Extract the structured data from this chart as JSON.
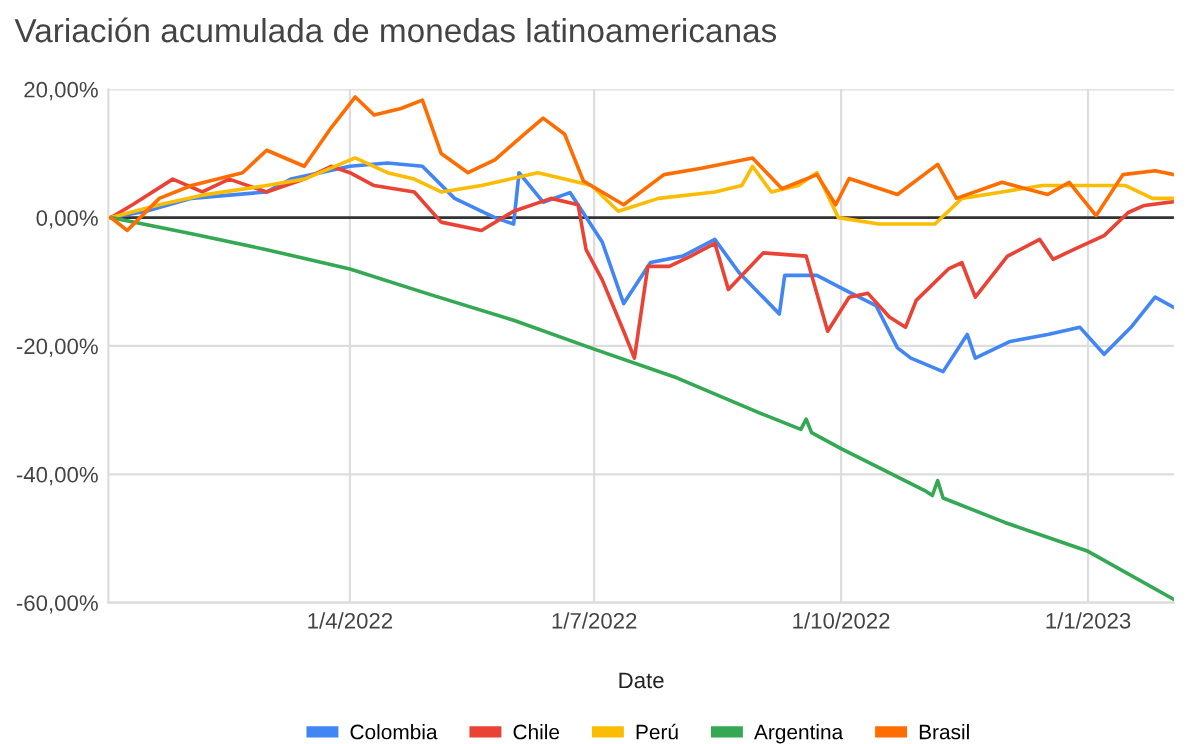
{
  "chart_data": {
    "type": "line",
    "title": "Variación acumulada de monedas latinoamericanas",
    "xlabel": "Date",
    "xlim": [
      "2022-01-01",
      "2023-02-02"
    ],
    "xticks": [
      {
        "value": "2022-04-01",
        "label": "1/4/2022"
      },
      {
        "value": "2022-07-01",
        "label": "1/7/2022"
      },
      {
        "value": "2022-10-01",
        "label": "1/10/2022"
      },
      {
        "value": "2023-01-01",
        "label": "1/1/2023"
      }
    ],
    "ylim": [
      -60,
      20
    ],
    "yticks": [
      {
        "value": -60,
        "label": "-60,00%"
      },
      {
        "value": -40,
        "label": "-40,00%"
      },
      {
        "value": -20,
        "label": "-20,00%"
      },
      {
        "value": 0,
        "label": "0,00%"
      },
      {
        "value": 20,
        "label": "20,00%"
      }
    ],
    "grid": true,
    "legend": "bottom",
    "marker": "none",
    "line_style": "solid",
    "ref_lines": [
      {
        "axis": "y",
        "value": 0,
        "color": "#333333"
      }
    ],
    "series": [
      {
        "name": "Colombia",
        "color": "#4285f4",
        "x": [
          "2022-01-02",
          "2022-01-15",
          "2022-02-01",
          "2022-03-01",
          "2022-03-10",
          "2022-04-01",
          "2022-04-15",
          "2022-04-28",
          "2022-05-10",
          "2022-05-25",
          "2022-06-01",
          "2022-06-03",
          "2022-06-12",
          "2022-06-22",
          "2022-07-04",
          "2022-07-12",
          "2022-07-22",
          "2022-08-03",
          "2022-08-15",
          "2022-08-24",
          "2022-09-08",
          "2022-09-10",
          "2022-09-22",
          "2022-10-04",
          "2022-10-14",
          "2022-10-22",
          "2022-10-27",
          "2022-11-08",
          "2022-11-17",
          "2022-11-20",
          "2022-12-03",
          "2022-12-17",
          "2022-12-29",
          "2023-01-07",
          "2023-01-17",
          "2023-01-26",
          "2023-02-02"
        ],
        "values": [
          0,
          1,
          3,
          4,
          6,
          8,
          8.5,
          8,
          3,
          0,
          -1,
          7,
          2.4,
          3.9,
          -3.8,
          -13.4,
          -7,
          -6,
          -3.4,
          -8.6,
          -15,
          -9,
          -9,
          -11.6,
          -13.7,
          -20.3,
          -21.9,
          -24,
          -18.2,
          -21.9,
          -19.3,
          -18.2,
          -17.1,
          -21.3,
          -17.1,
          -12.4,
          -14
        ]
      },
      {
        "name": "Chile",
        "color": "#ea4335",
        "x": [
          "2022-01-02",
          "2022-01-10",
          "2022-01-25",
          "2022-02-05",
          "2022-02-15",
          "2022-03-01",
          "2022-03-15",
          "2022-03-25",
          "2022-04-01",
          "2022-04-10",
          "2022-04-25",
          "2022-05-05",
          "2022-05-20",
          "2022-06-01",
          "2022-06-15",
          "2022-06-25",
          "2022-06-28",
          "2022-07-04",
          "2022-07-12",
          "2022-07-16",
          "2022-07-21",
          "2022-07-29",
          "2022-08-06",
          "2022-08-15",
          "2022-08-20",
          "2022-09-02",
          "2022-09-18",
          "2022-09-26",
          "2022-10-04",
          "2022-10-11",
          "2022-10-19",
          "2022-10-25",
          "2022-10-29",
          "2022-11-10",
          "2022-11-15",
          "2022-11-20",
          "2022-12-02",
          "2022-12-14",
          "2022-12-19",
          "2022-12-27",
          "2023-01-07",
          "2023-01-16",
          "2023-01-22",
          "2023-02-02"
        ],
        "values": [
          0,
          2,
          6,
          4,
          6,
          4,
          6,
          8,
          7,
          5,
          4,
          -0.7,
          -2,
          1,
          3,
          2,
          -5,
          -9.7,
          -17.7,
          -21.9,
          -7.6,
          -7.6,
          -6,
          -4,
          -11.2,
          -5.5,
          -6,
          -17.7,
          -12.4,
          -11.8,
          -15.5,
          -17.1,
          -12.9,
          -8,
          -7,
          -12.4,
          -6,
          -3.4,
          -6.5,
          -4.9,
          -2.8,
          0.8,
          1.9,
          2.5
        ]
      },
      {
        "name": "Perú",
        "color": "#fbbc04",
        "x": [
          "2022-01-02",
          "2022-01-20",
          "2022-02-05",
          "2022-03-01",
          "2022-03-15",
          "2022-04-03",
          "2022-04-15",
          "2022-04-25",
          "2022-05-05",
          "2022-05-20",
          "2022-06-10",
          "2022-06-20",
          "2022-06-30",
          "2022-07-10",
          "2022-07-25",
          "2022-08-15",
          "2022-08-25",
          "2022-08-29",
          "2022-09-05",
          "2022-09-15",
          "2022-09-22",
          "2022-09-30",
          "2022-10-15",
          "2022-11-05",
          "2022-11-15",
          "2022-11-30",
          "2022-12-15",
          "2023-01-05",
          "2023-01-15",
          "2023-01-25",
          "2023-02-02"
        ],
        "values": [
          0,
          2,
          3.5,
          5,
          6,
          9.3,
          7,
          6,
          4,
          5,
          7,
          6,
          5,
          1,
          3,
          4,
          5,
          8,
          4,
          5,
          7,
          0,
          -1,
          -1,
          3,
          4,
          5,
          5,
          5,
          3,
          3
        ]
      },
      {
        "name": "Argentina",
        "color": "#34a853",
        "x": [
          "2022-01-02",
          "2022-02-01",
          "2022-03-01",
          "2022-04-01",
          "2022-05-01",
          "2022-06-01",
          "2022-07-01",
          "2022-08-01",
          "2022-09-01",
          "2022-09-16",
          "2022-09-18",
          "2022-09-20",
          "2022-10-01",
          "2022-11-01",
          "2022-11-04",
          "2022-11-06",
          "2022-11-08",
          "2022-12-01",
          "2023-01-01",
          "2023-02-02"
        ],
        "values": [
          0,
          -2.5,
          -5,
          -8,
          -12,
          -16,
          -20.5,
          -25,
          -30.5,
          -33,
          -31.4,
          -33.5,
          -36,
          -42.5,
          -43.3,
          -41,
          -43.7,
          -47.5,
          -52,
          -59.5
        ]
      },
      {
        "name": "Brasil",
        "color": "#ff6d01",
        "x": [
          "2022-01-02",
          "2022-01-08",
          "2022-01-20",
          "2022-02-01",
          "2022-02-20",
          "2022-03-01",
          "2022-03-15",
          "2022-03-25",
          "2022-04-03",
          "2022-04-10",
          "2022-04-20",
          "2022-04-28",
          "2022-05-05",
          "2022-05-15",
          "2022-05-25",
          "2022-06-05",
          "2022-06-12",
          "2022-06-20",
          "2022-06-27",
          "2022-07-12",
          "2022-07-27",
          "2022-08-10",
          "2022-08-29",
          "2022-09-09",
          "2022-09-22",
          "2022-09-29",
          "2022-10-04",
          "2022-10-22",
          "2022-11-06",
          "2022-11-13",
          "2022-11-30",
          "2022-12-17",
          "2022-12-25",
          "2023-01-04",
          "2023-01-14",
          "2023-01-26",
          "2023-02-02"
        ],
        "values": [
          0,
          -2,
          3,
          5,
          7,
          10.5,
          8,
          14,
          18.8,
          16,
          17,
          18.3,
          10,
          7,
          9,
          13,
          15.5,
          13,
          5.7,
          2,
          6.7,
          7.7,
          9.3,
          4.5,
          6.7,
          2,
          6.1,
          3.6,
          8.3,
          3,
          5.5,
          3.6,
          5.5,
          0.3,
          6.7,
          7.3,
          6.7
        ]
      }
    ]
  }
}
